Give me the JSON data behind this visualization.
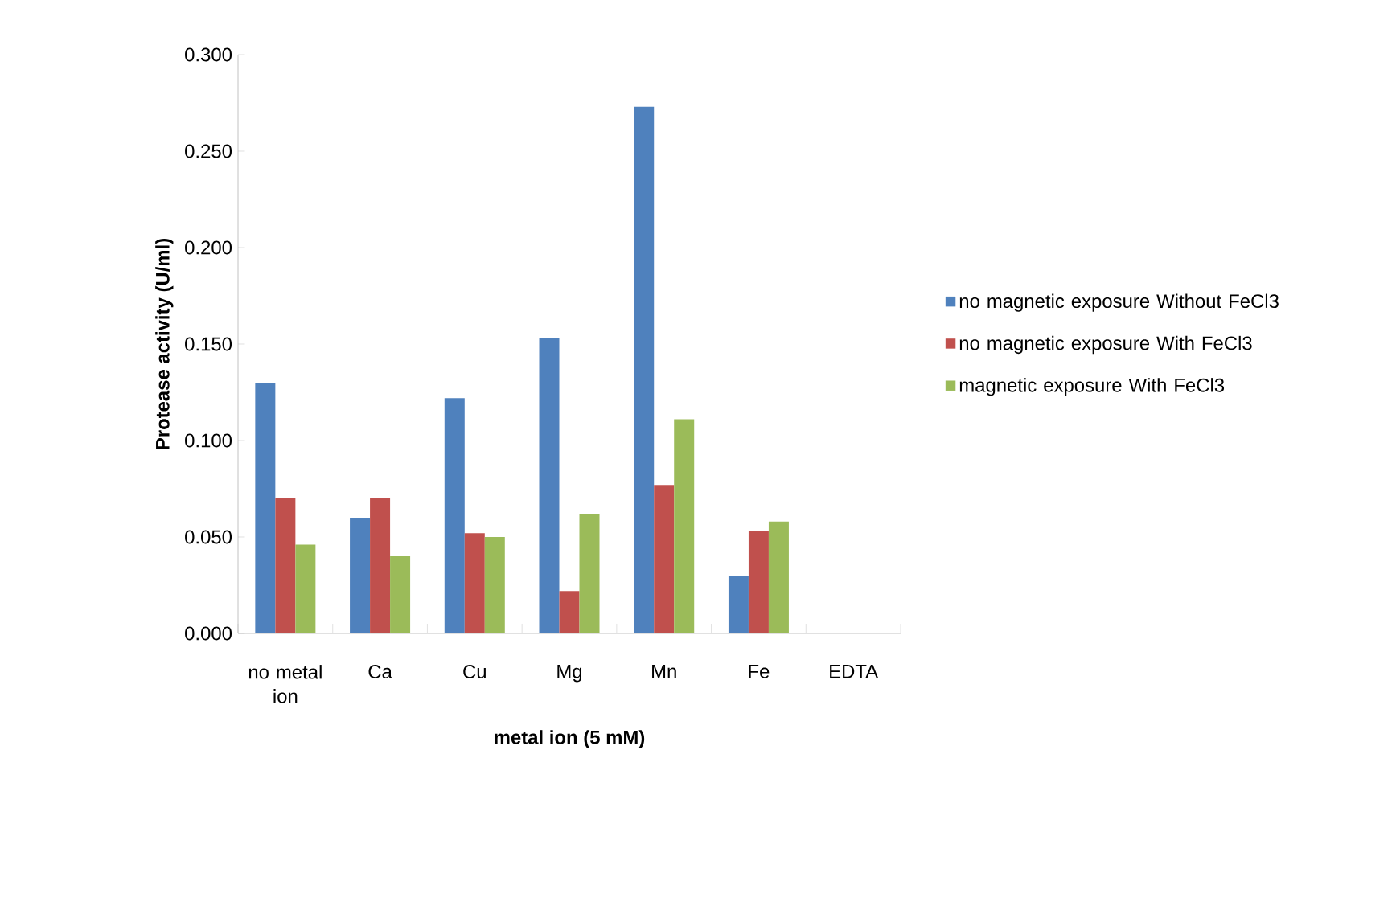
{
  "chart_data": {
    "type": "bar",
    "xlabel": "metal  ion (5 mM)",
    "ylabel": "Protease activity (U/ml)",
    "categories": [
      "no metal ion",
      "Ca",
      "Cu",
      "Mg",
      "Mn",
      "Fe",
      "EDTA"
    ],
    "series": [
      {
        "name": "no magnetic exposure Without FeCl3",
        "color": "#4f81bd",
        "values": [
          0.13,
          0.06,
          0.122,
          0.153,
          0.273,
          0.03,
          0
        ]
      },
      {
        "name": "no magnetic exposure With FeCl3",
        "color": "#c0504d",
        "values": [
          0.07,
          0.07,
          0.052,
          0.022,
          0.077,
          0.053,
          0
        ]
      },
      {
        "name": "magnetic exposure With FeCl3",
        "color": "#9bbb59",
        "values": [
          0.046,
          0.04,
          0.05,
          0.062,
          0.111,
          0.058,
          0
        ]
      }
    ],
    "ylim": [
      0,
      0.3
    ],
    "yticks": [
      {
        "value": 0,
        "label": "0.000"
      },
      {
        "value": 0.05,
        "label": "0.050"
      },
      {
        "value": 0.1,
        "label": "0.100"
      },
      {
        "value": 0.15,
        "label": "0.150"
      },
      {
        "value": 0.2,
        "label": "0.200"
      },
      {
        "value": 0.25,
        "label": "0.250"
      },
      {
        "value": 0.3,
        "label": "0.300"
      }
    ],
    "legend": "right"
  }
}
